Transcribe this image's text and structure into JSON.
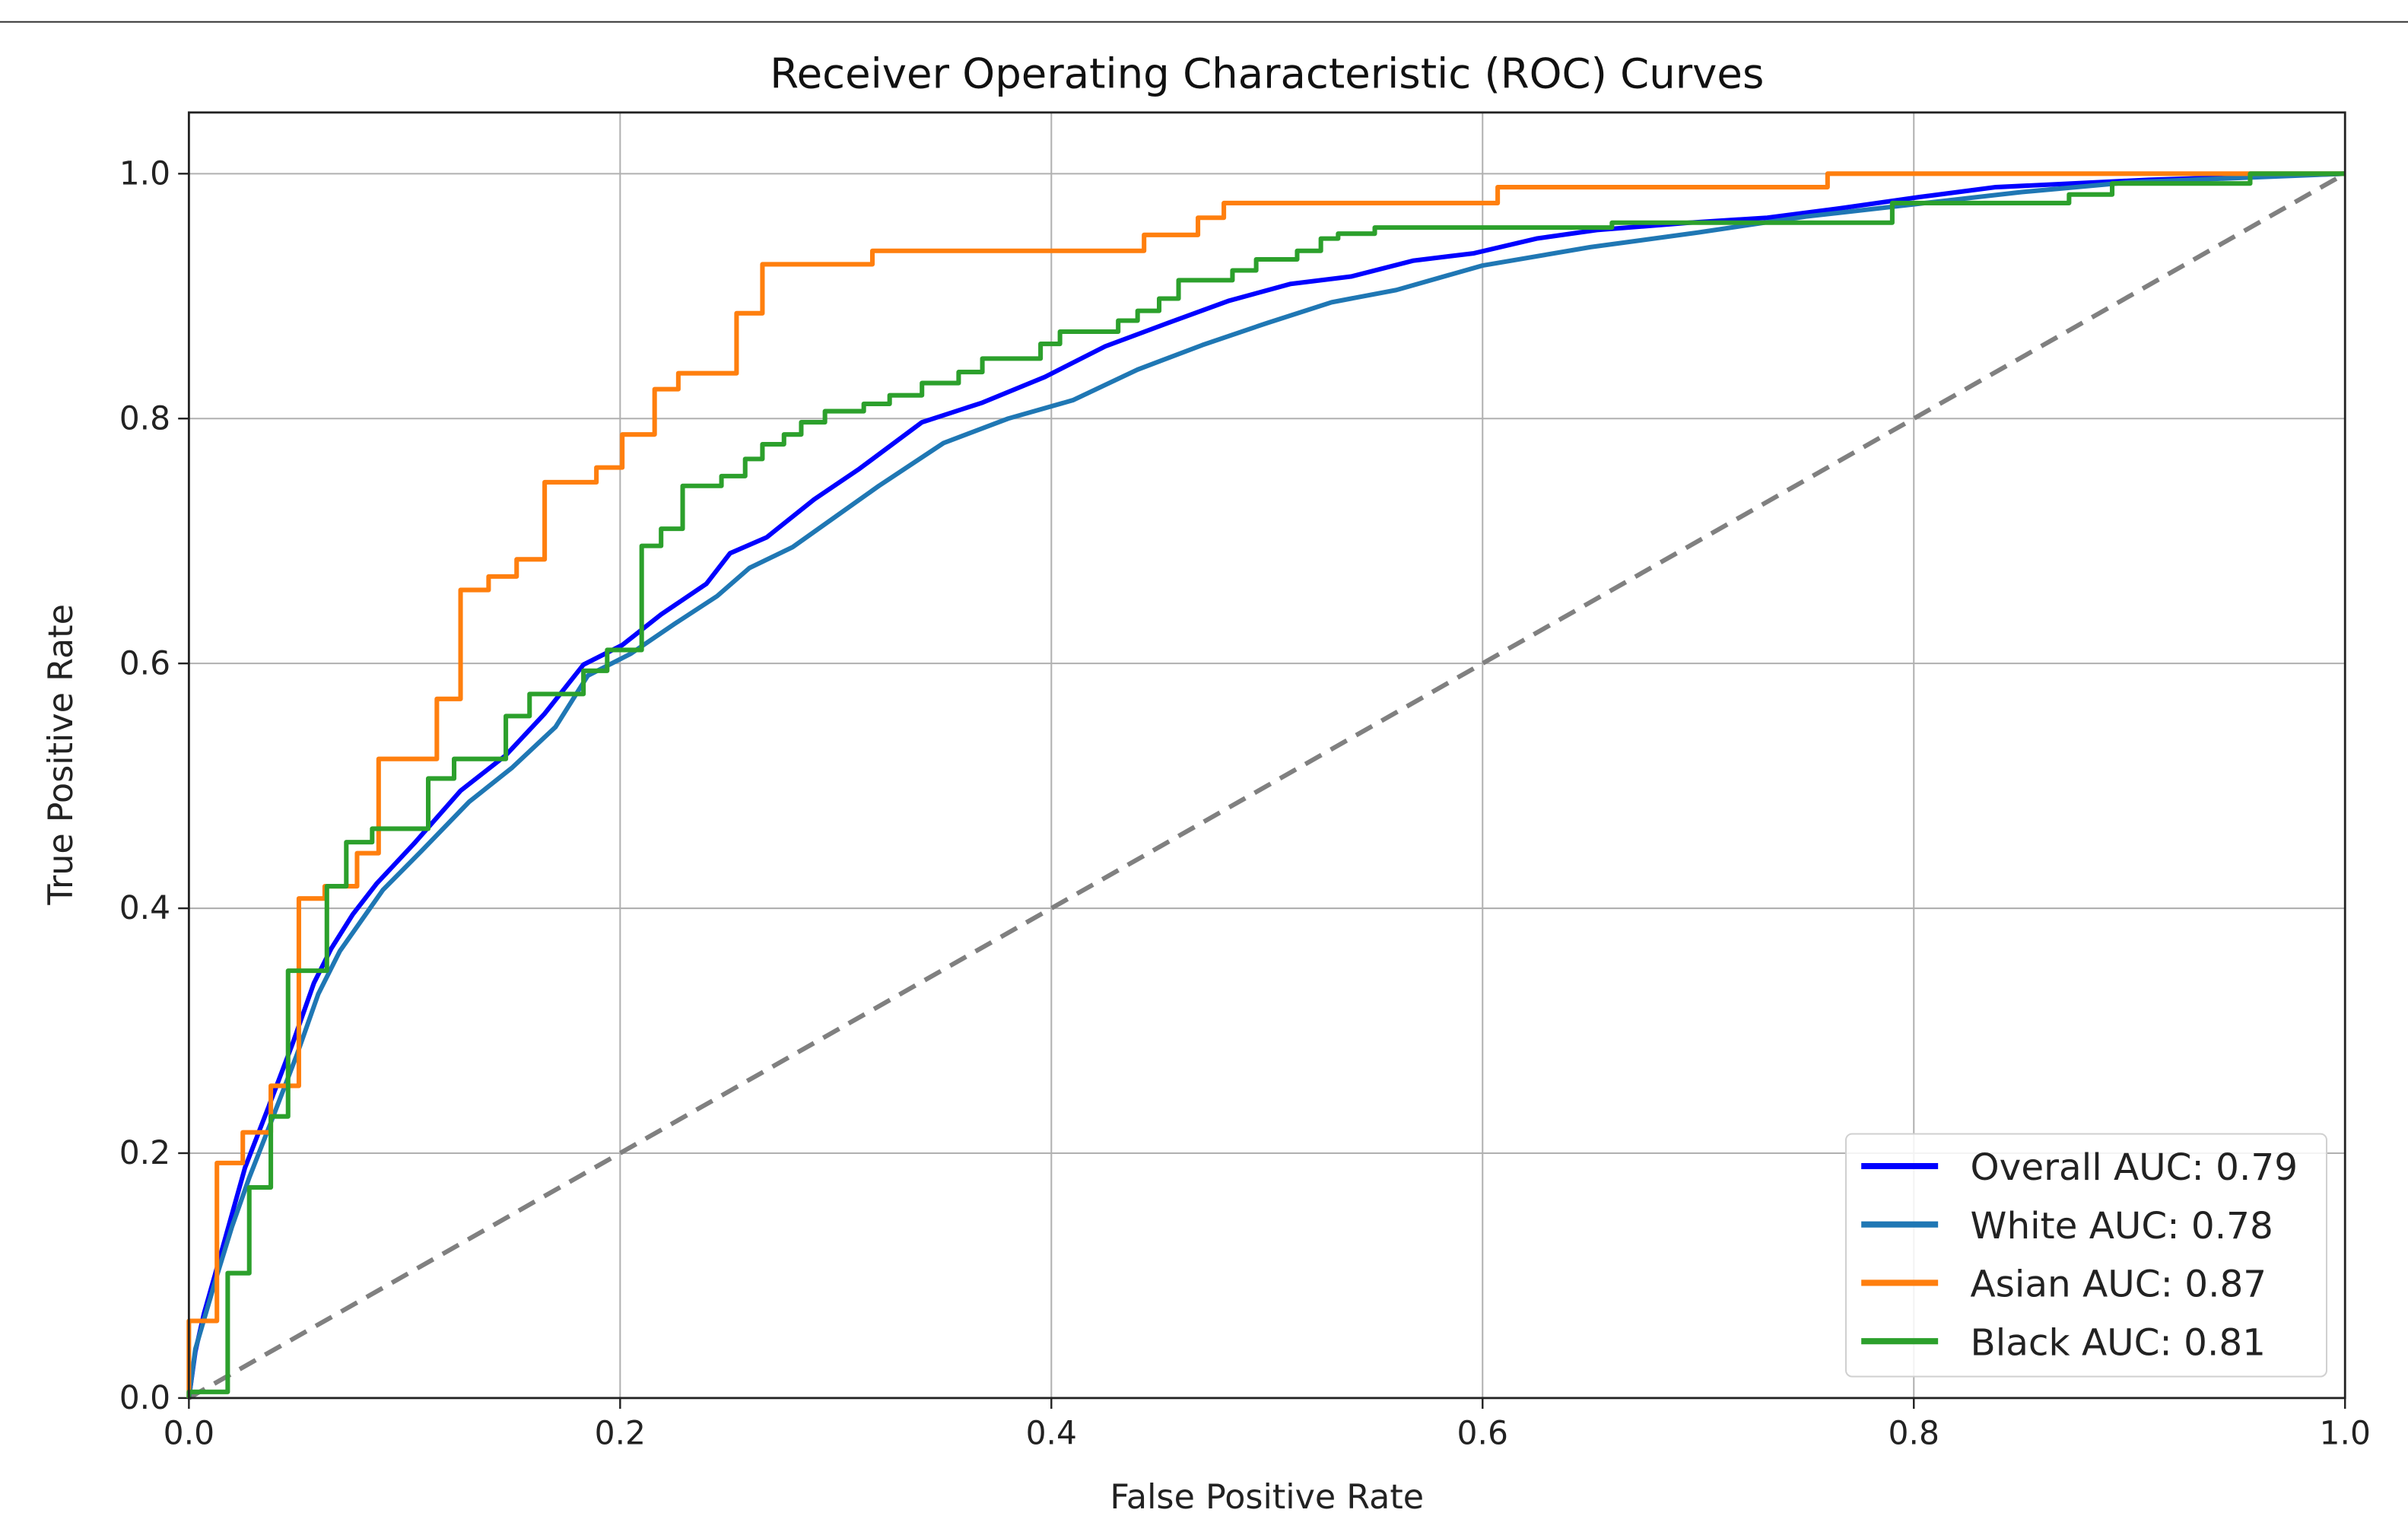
{
  "chart_data": {
    "type": "line",
    "title": "Receiver Operating Characteristic (ROC) Curves",
    "xlabel": "False Positive Rate",
    "ylabel": "True Positive Rate",
    "xlim": [
      0,
      1.0
    ],
    "ylim": [
      0,
      1.05
    ],
    "xticks": [
      "0.0",
      "0.2",
      "0.4",
      "0.6",
      "0.8",
      "1.0"
    ],
    "yticks": [
      "0.0",
      "0.2",
      "0.4",
      "0.6",
      "0.8",
      "1.0"
    ],
    "grid": true,
    "legend_position": "lower-right",
    "series": [
      {
        "name": "Overall AUC: 0.79",
        "color": "#0000ff",
        "step": false,
        "x": [
          0,
          0.003,
          0.007,
          0.012,
          0.019,
          0.026,
          0.037,
          0.048,
          0.058,
          0.066,
          0.076,
          0.087,
          0.105,
          0.126,
          0.147,
          0.165,
          0.183,
          0.201,
          0.219,
          0.24,
          0.251,
          0.268,
          0.29,
          0.311,
          0.34,
          0.368,
          0.397,
          0.425,
          0.454,
          0.482,
          0.511,
          0.539,
          0.568,
          0.596,
          0.625,
          0.653,
          0.696,
          0.732,
          0.767,
          0.803,
          0.838,
          0.909,
          1
        ],
        "y": [
          0,
          0.038,
          0.069,
          0.1,
          0.144,
          0.188,
          0.238,
          0.289,
          0.339,
          0.367,
          0.395,
          0.42,
          0.454,
          0.496,
          0.525,
          0.559,
          0.599,
          0.615,
          0.64,
          0.665,
          0.69,
          0.703,
          0.734,
          0.759,
          0.797,
          0.813,
          0.834,
          0.859,
          0.878,
          0.896,
          0.91,
          0.916,
          0.929,
          0.935,
          0.947,
          0.954,
          0.96,
          0.964,
          0.972,
          0.981,
          0.989,
          0.995,
          1
        ]
      },
      {
        "name": "White AUC: 0.78",
        "color": "#1f77b4",
        "step": false,
        "x": [
          0,
          0.003,
          0.008,
          0.013,
          0.02,
          0.028,
          0.038,
          0.05,
          0.06,
          0.07,
          0.08,
          0.09,
          0.108,
          0.13,
          0.15,
          0.17,
          0.185,
          0.205,
          0.225,
          0.245,
          0.26,
          0.28,
          0.3,
          0.32,
          0.35,
          0.38,
          0.41,
          0.44,
          0.47,
          0.5,
          0.53,
          0.56,
          0.6,
          0.65,
          0.7,
          0.75,
          0.8,
          0.85,
          0.9,
          1
        ],
        "y": [
          0,
          0.04,
          0.07,
          0.1,
          0.14,
          0.18,
          0.225,
          0.28,
          0.33,
          0.365,
          0.39,
          0.415,
          0.447,
          0.487,
          0.515,
          0.548,
          0.59,
          0.608,
          0.632,
          0.655,
          0.678,
          0.695,
          0.72,
          0.745,
          0.78,
          0.8,
          0.815,
          0.84,
          0.86,
          0.878,
          0.895,
          0.905,
          0.925,
          0.94,
          0.952,
          0.965,
          0.975,
          0.985,
          0.993,
          1
        ]
      },
      {
        "name": "Asian AUC: 0.87",
        "color": "#ff7f0e",
        "step": true,
        "x": [
          0,
          0,
          0.013,
          0.025,
          0.038,
          0.051,
          0.063,
          0.078,
          0.088,
          0.115,
          0.126,
          0.139,
          0.152,
          0.165,
          0.189,
          0.201,
          0.216,
          0.227,
          0.254,
          0.266,
          0.317,
          0.443,
          0.468,
          0.48,
          0.607,
          0.76,
          1
        ],
        "y": [
          0,
          0.063,
          0.192,
          0.217,
          0.255,
          0.408,
          0.418,
          0.445,
          0.522,
          0.571,
          0.66,
          0.671,
          0.685,
          0.748,
          0.76,
          0.787,
          0.824,
          0.837,
          0.886,
          0.926,
          0.937,
          0.95,
          0.964,
          0.976,
          0.989,
          1.0,
          1.0
        ]
      },
      {
        "name": "Black AUC: 0.81",
        "color": "#2ca02c",
        "step": true,
        "x": [
          0,
          0.018,
          0.028,
          0.038,
          0.046,
          0.064,
          0.073,
          0.085,
          0.111,
          0.123,
          0.147,
          0.158,
          0.183,
          0.194,
          0.21,
          0.219,
          0.229,
          0.247,
          0.258,
          0.266,
          0.276,
          0.284,
          0.295,
          0.313,
          0.325,
          0.34,
          0.357,
          0.368,
          0.395,
          0.404,
          0.431,
          0.44,
          0.45,
          0.459,
          0.484,
          0.495,
          0.514,
          0.525,
          0.533,
          0.55,
          0.66,
          0.79,
          0.872,
          0.892,
          0.956,
          1
        ],
        "y": [
          0.005,
          0.102,
          0.172,
          0.23,
          0.349,
          0.418,
          0.454,
          0.465,
          0.506,
          0.522,
          0.557,
          0.575,
          0.594,
          0.611,
          0.696,
          0.71,
          0.745,
          0.753,
          0.767,
          0.779,
          0.787,
          0.797,
          0.806,
          0.812,
          0.819,
          0.829,
          0.838,
          0.849,
          0.861,
          0.871,
          0.88,
          0.888,
          0.898,
          0.913,
          0.921,
          0.93,
          0.937,
          0.947,
          0.951,
          0.956,
          0.96,
          0.976,
          0.983,
          0.992,
          1.0,
          1.0
        ]
      }
    ],
    "reference_line": {
      "x": [
        0,
        1
      ],
      "y": [
        0,
        1
      ],
      "color": "#808080",
      "style": "dashed"
    }
  }
}
